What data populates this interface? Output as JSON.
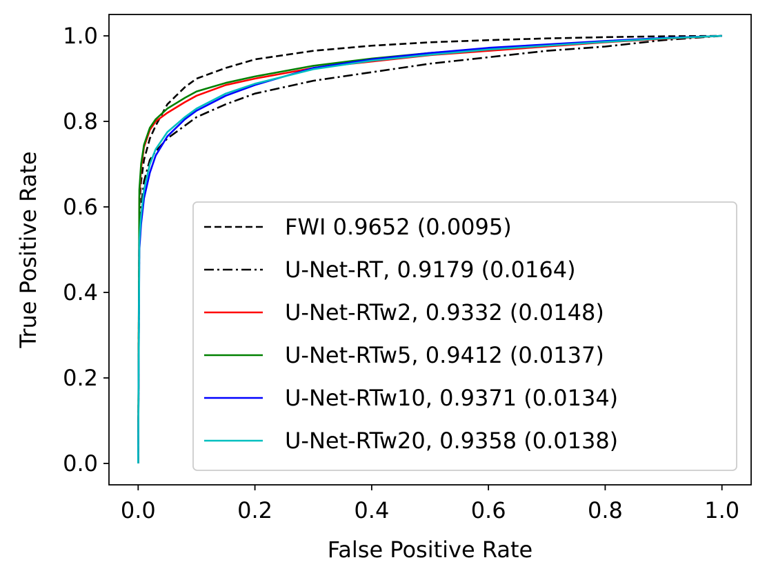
{
  "chart_data": {
    "type": "line",
    "title": "",
    "xlabel": "False Positive Rate",
    "ylabel": "True Positive Rate",
    "xlim": [
      -0.05,
      1.05
    ],
    "ylim": [
      -0.05,
      1.05
    ],
    "xticks": [
      "0.0",
      "0.2",
      "0.4",
      "0.6",
      "0.8",
      "1.0"
    ],
    "yticks": [
      "0.0",
      "0.2",
      "0.4",
      "0.6",
      "0.8",
      "1.0"
    ],
    "grid": false,
    "legend_position": "lower-right",
    "series": [
      {
        "name": "FWI 0.9652 (0.0095)",
        "color": "#000000",
        "style": "dashed",
        "x": [
          0,
          0.002,
          0.005,
          0.01,
          0.02,
          0.03,
          0.05,
          0.08,
          0.1,
          0.15,
          0.2,
          0.3,
          0.4,
          0.5,
          0.6,
          0.7,
          0.8,
          0.9,
          1.0
        ],
        "y": [
          0,
          0.6,
          0.66,
          0.71,
          0.76,
          0.79,
          0.84,
          0.88,
          0.9,
          0.925,
          0.945,
          0.965,
          0.977,
          0.985,
          0.99,
          0.994,
          0.997,
          0.999,
          1.0
        ]
      },
      {
        "name": "U-Net-RT, 0.9179 (0.0164)",
        "color": "#000000",
        "style": "dashdot",
        "x": [
          0,
          0.002,
          0.005,
          0.01,
          0.02,
          0.03,
          0.05,
          0.08,
          0.1,
          0.15,
          0.2,
          0.3,
          0.4,
          0.5,
          0.6,
          0.7,
          0.8,
          0.9,
          1.0
        ],
        "y": [
          0,
          0.55,
          0.6,
          0.66,
          0.71,
          0.73,
          0.76,
          0.79,
          0.81,
          0.84,
          0.865,
          0.895,
          0.915,
          0.935,
          0.95,
          0.965,
          0.975,
          0.99,
          1.0
        ]
      },
      {
        "name": "U-Net-RTw2, 0.9332 (0.0148)",
        "color": "#ff0000",
        "style": "solid",
        "x": [
          0,
          0.002,
          0.005,
          0.01,
          0.02,
          0.03,
          0.05,
          0.08,
          0.1,
          0.15,
          0.2,
          0.3,
          0.4,
          0.5,
          0.6,
          0.7,
          0.8,
          0.9,
          1.0
        ],
        "y": [
          0,
          0.62,
          0.69,
          0.74,
          0.78,
          0.8,
          0.82,
          0.845,
          0.86,
          0.885,
          0.9,
          0.925,
          0.94,
          0.955,
          0.965,
          0.975,
          0.985,
          0.993,
          1.0
        ]
      },
      {
        "name": "U-Net-RTw5, 0.9412 (0.0137)",
        "color": "#008000",
        "style": "solid",
        "x": [
          0,
          0.002,
          0.005,
          0.01,
          0.02,
          0.03,
          0.05,
          0.08,
          0.1,
          0.15,
          0.2,
          0.3,
          0.4,
          0.5,
          0.6,
          0.7,
          0.8,
          0.9,
          1.0
        ],
        "y": [
          0,
          0.64,
          0.7,
          0.745,
          0.785,
          0.805,
          0.83,
          0.855,
          0.87,
          0.89,
          0.905,
          0.93,
          0.947,
          0.96,
          0.97,
          0.978,
          0.986,
          0.994,
          1.0
        ]
      },
      {
        "name": "U-Net-RTw10, 0.9371 (0.0134)",
        "color": "#0000ff",
        "style": "solid",
        "x": [
          0,
          0.002,
          0.005,
          0.01,
          0.02,
          0.03,
          0.05,
          0.08,
          0.1,
          0.15,
          0.2,
          0.3,
          0.4,
          0.5,
          0.6,
          0.7,
          0.8,
          0.9,
          1.0
        ],
        "y": [
          0,
          0.5,
          0.56,
          0.62,
          0.68,
          0.72,
          0.765,
          0.805,
          0.825,
          0.86,
          0.885,
          0.925,
          0.945,
          0.96,
          0.972,
          0.98,
          0.988,
          0.995,
          1.0
        ]
      },
      {
        "name": "U-Net-RTw20, 0.9358 (0.0138)",
        "color": "#00bfbf",
        "style": "solid",
        "x": [
          0,
          0.002,
          0.005,
          0.01,
          0.02,
          0.03,
          0.05,
          0.08,
          0.1,
          0.15,
          0.2,
          0.3,
          0.4,
          0.5,
          0.6,
          0.7,
          0.8,
          0.9,
          1.0
        ],
        "y": [
          0,
          0.52,
          0.58,
          0.64,
          0.7,
          0.735,
          0.775,
          0.81,
          0.83,
          0.865,
          0.888,
          0.922,
          0.942,
          0.956,
          0.968,
          0.977,
          0.986,
          0.994,
          1.0
        ]
      }
    ]
  }
}
